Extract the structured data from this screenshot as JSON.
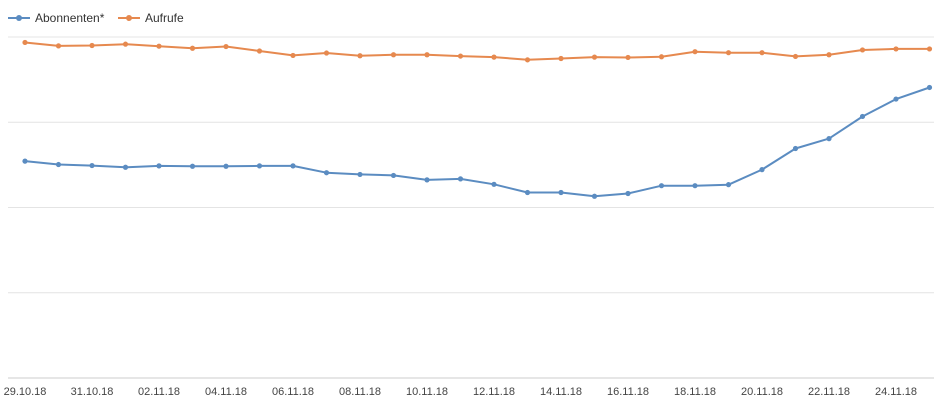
{
  "chart_data": {
    "type": "line",
    "title": "",
    "xlabel": "",
    "ylabel": "",
    "grid": true,
    "legend_position": "top-left",
    "ylim": [
      0,
      100
    ],
    "x": [
      "29.10.18",
      "30.10.18",
      "31.10.18",
      "01.11.18",
      "02.11.18",
      "03.11.18",
      "04.11.18",
      "05.11.18",
      "06.11.18",
      "07.11.18",
      "08.11.18",
      "09.11.18",
      "10.11.18",
      "11.11.18",
      "12.11.18",
      "13.11.18",
      "14.11.18",
      "15.11.18",
      "16.11.18",
      "17.11.18",
      "18.11.18",
      "19.11.18",
      "20.11.18",
      "21.11.18",
      "22.11.18",
      "23.11.18",
      "24.11.18",
      "25.11.18"
    ],
    "x_tick_labels": [
      "29.10.18",
      "31.10.18",
      "02.11.18",
      "04.11.18",
      "06.11.18",
      "08.11.18",
      "10.11.18",
      "12.11.18",
      "14.11.18",
      "16.11.18",
      "18.11.18",
      "20.11.18",
      "22.11.18",
      "24.11.18"
    ],
    "series": [
      {
        "name": "Abonnenten*",
        "color": "#5b8cc1",
        "values": [
          63.6,
          62.6,
          62.3,
          61.8,
          62.2,
          62.1,
          62.1,
          62.2,
          62.2,
          60.2,
          59.7,
          59.4,
          58.1,
          58.4,
          56.8,
          54.4,
          54.4,
          53.3,
          54.1,
          56.4,
          56.4,
          56.7,
          61.1,
          67.3,
          70.2,
          76.7,
          81.8,
          85.2
        ]
      },
      {
        "name": "Aufrufe",
        "color": "#e6894f",
        "values": [
          98.4,
          97.4,
          97.5,
          97.9,
          97.3,
          96.7,
          97.2,
          95.9,
          94.6,
          95.3,
          94.5,
          94.8,
          94.8,
          94.4,
          94.1,
          93.3,
          93.7,
          94.1,
          94.0,
          94.2,
          95.7,
          95.4,
          95.4,
          94.3,
          94.8,
          96.2,
          96.5,
          96.5
        ]
      }
    ]
  }
}
